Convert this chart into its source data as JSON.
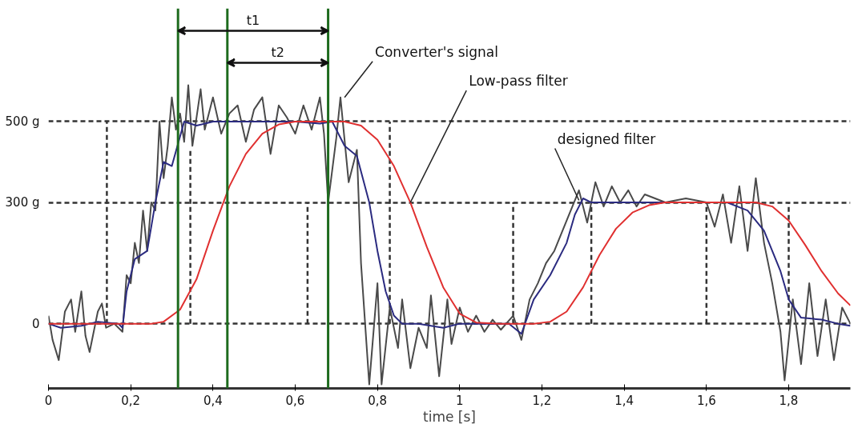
{
  "chart_data": {
    "type": "line",
    "xlabel": "time [s]",
    "xlim": [
      0,
      1.95
    ],
    "ylim": [
      -160,
      780
    ],
    "xticks": [
      0,
      {
        "value": 0.2,
        "label": "0,2"
      },
      {
        "value": 0.4,
        "label": "0,4"
      },
      {
        "value": 0.6,
        "label": "0,6"
      },
      {
        "value": 0.8,
        "label": "0,8"
      },
      1,
      {
        "value": 1.2,
        "label": "1,2"
      },
      {
        "value": 1.4,
        "label": "1,4"
      },
      {
        "value": 1.6,
        "label": "1,6"
      },
      {
        "value": 1.8,
        "label": "1,8"
      }
    ],
    "yticks": [
      0,
      {
        "value": 300,
        "label": "300 g"
      },
      {
        "value": 500,
        "label": "500 g"
      }
    ],
    "grid": "y",
    "series": [
      {
        "color": "#333333",
        "line_style": "dashed",
        "x": [
          0.142,
          0.142,
          null,
          0.345,
          0.345,
          null,
          0.63,
          0.63,
          null,
          0.83,
          0.83,
          null,
          1.13,
          1.13,
          null,
          1.32,
          1.32,
          null,
          1.6,
          1.6,
          null,
          1.8,
          1.8
        ],
        "values": [
          0,
          500,
          null,
          0,
          430,
          null,
          0,
          300,
          null,
          0,
          500,
          null,
          0,
          300,
          null,
          0,
          300,
          null,
          0,
          300,
          null,
          0,
          300
        ]
      },
      {
        "color": "#4a4a4a",
        "x": [
          0,
          0.01,
          0.025,
          0.04,
          0.055,
          0.065,
          0.08,
          0.09,
          0.1,
          0.12,
          0.13,
          0.14,
          0.16,
          0.18,
          0.19,
          0.2,
          0.21,
          0.22,
          0.23,
          0.24,
          0.25,
          0.26,
          0.27,
          0.28,
          0.29,
          0.3,
          0.31,
          0.32,
          0.33,
          0.34,
          0.35,
          0.37,
          0.38,
          0.4,
          0.42,
          0.44,
          0.46,
          0.48,
          0.5,
          0.52,
          0.54,
          0.56,
          0.58,
          0.6,
          0.62,
          0.64,
          0.66,
          0.67,
          0.68,
          0.7,
          0.71,
          0.73,
          0.75,
          0.76,
          0.78,
          0.8,
          0.81,
          0.83,
          0.85,
          0.86,
          0.88,
          0.9,
          0.92,
          0.93,
          0.95,
          0.97,
          0.98,
          1.0,
          1.02,
          1.04,
          1.06,
          1.08,
          1.1,
          1.13,
          1.15,
          1.17,
          1.19,
          1.21,
          1.23,
          1.25,
          1.27,
          1.29,
          1.31,
          1.33,
          1.35,
          1.37,
          1.39,
          1.41,
          1.43,
          1.45,
          1.5,
          1.55,
          1.6,
          1.62,
          1.64,
          1.66,
          1.68,
          1.7,
          1.72,
          1.74,
          1.76,
          1.78,
          1.79,
          1.81,
          1.83,
          1.85,
          1.87,
          1.89,
          1.91,
          1.93,
          1.95
        ],
        "values": [
          20,
          -40,
          -90,
          30,
          60,
          -20,
          80,
          -30,
          -70,
          30,
          50,
          -10,
          0,
          -20,
          120,
          100,
          200,
          150,
          280,
          180,
          300,
          280,
          500,
          360,
          440,
          560,
          480,
          520,
          450,
          590,
          440,
          580,
          480,
          560,
          470,
          520,
          540,
          450,
          530,
          560,
          420,
          540,
          510,
          470,
          540,
          480,
          560,
          470,
          300,
          460,
          560,
          350,
          430,
          150,
          -150,
          100,
          -150,
          40,
          -60,
          60,
          -110,
          -10,
          -60,
          70,
          -130,
          60,
          -50,
          40,
          -20,
          20,
          -20,
          10,
          -15,
          20,
          -40,
          60,
          100,
          150,
          180,
          230,
          280,
          330,
          250,
          350,
          290,
          340,
          300,
          330,
          290,
          320,
          300,
          310,
          300,
          240,
          320,
          200,
          340,
          180,
          360,
          200,
          100,
          -20,
          -140,
          60,
          -100,
          100,
          -80,
          60,
          -90,
          40,
          0
        ]
      },
      {
        "color": "#2b2b80",
        "x": [
          0,
          0.03,
          0.08,
          0.12,
          0.17,
          0.18,
          0.19,
          0.21,
          0.24,
          0.26,
          0.28,
          0.3,
          0.33,
          0.36,
          0.4,
          0.5,
          0.6,
          0.66,
          0.69,
          0.72,
          0.75,
          0.78,
          0.8,
          0.82,
          0.84,
          0.86,
          0.9,
          0.96,
          1.0,
          1.05,
          1.12,
          1.15,
          1.18,
          1.22,
          1.26,
          1.28,
          1.3,
          1.32,
          1.4,
          1.6,
          1.65,
          1.7,
          1.74,
          1.78,
          1.8,
          1.83,
          1.88,
          1.92,
          1.95
        ],
        "values": [
          0,
          -10,
          -5,
          5,
          0,
          -10,
          80,
          160,
          180,
          300,
          400,
          390,
          500,
          490,
          500,
          500,
          500,
          495,
          500,
          440,
          415,
          300,
          180,
          80,
          20,
          0,
          0,
          -10,
          0,
          0,
          0,
          -25,
          60,
          120,
          200,
          270,
          310,
          300,
          300,
          300,
          300,
          280,
          230,
          130,
          60,
          15,
          10,
          0,
          -5
        ]
      },
      {
        "color": "#e03030",
        "x": [
          0,
          0.25,
          0.28,
          0.32,
          0.36,
          0.4,
          0.44,
          0.48,
          0.52,
          0.56,
          0.6,
          0.72,
          0.76,
          0.8,
          0.84,
          0.88,
          0.92,
          0.96,
          1.0,
          1.04,
          1.1,
          1.18,
          1.22,
          1.26,
          1.3,
          1.34,
          1.38,
          1.42,
          1.46,
          1.5,
          1.72,
          1.76,
          1.8,
          1.84,
          1.88,
          1.92,
          1.95
        ],
        "values": [
          0,
          0,
          5,
          35,
          110,
          230,
          340,
          420,
          470,
          493,
          500,
          500,
          490,
          455,
          390,
          300,
          190,
          90,
          25,
          3,
          0,
          0,
          5,
          30,
          90,
          170,
          235,
          275,
          293,
          300,
          300,
          290,
          255,
          195,
          130,
          75,
          45
        ]
      }
    ],
    "ref_lines": [
      {
        "axis": "x",
        "value": 0.315,
        "color": "#1e6b1e"
      },
      {
        "axis": "x",
        "value": 0.68,
        "color": "#1e6b1e"
      },
      {
        "axis": "x",
        "value": 0.435,
        "color": "#1e6b1e"
      }
    ],
    "annotations": [
      "t1",
      "t2",
      {
        "text": "Converter's signal",
        "x": 0.72,
        "y": 560
      },
      {
        "text": "Low-pass filter",
        "x": 0.88,
        "y": 300
      },
      {
        "text": "designed filter",
        "x": 1.29,
        "y": 305
      }
    ]
  }
}
